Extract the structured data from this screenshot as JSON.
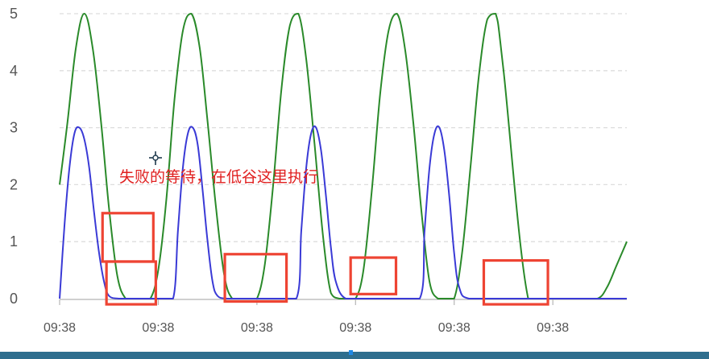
{
  "chart_data": {
    "type": "line",
    "title": "",
    "xlabel": "",
    "ylabel": "",
    "ylim": [
      0,
      5
    ],
    "yticks": [
      0,
      1,
      2,
      3,
      4,
      5
    ],
    "xlim": [
      0,
      11.5
    ],
    "x_tick_labels": [
      "09:38",
      "09:38",
      "09:38",
      "09:38",
      "09:38",
      "09:38"
    ],
    "x_tick_positions": [
      0,
      2,
      4,
      6,
      8,
      10
    ],
    "grid": true,
    "series": [
      {
        "color": "#2a8a2a",
        "x": [
          0,
          0.16,
          0.33,
          0.5,
          0.67,
          0.84,
          1.0,
          1.17,
          1.34,
          1.5,
          1.67,
          1.84,
          2.0,
          2.16,
          2.33,
          2.5,
          2.67,
          2.84,
          3.0,
          3.17,
          3.34,
          3.5,
          3.67,
          3.84,
          4.0,
          4.16,
          4.33,
          4.5,
          4.67,
          4.84,
          5.0,
          5.17,
          5.34,
          5.5,
          5.67,
          5.84,
          6.0,
          6.16,
          6.33,
          6.5,
          6.67,
          6.84,
          7.0,
          7.17,
          7.34,
          7.5,
          7.67,
          7.84,
          8.0,
          8.16,
          8.33,
          8.5,
          8.67,
          8.84,
          9.0,
          9.5,
          10.0,
          10.5,
          10.9,
          11.1,
          11.3,
          11.5
        ],
        "values": [
          2.0,
          3.1,
          4.4,
          5.0,
          4.4,
          3.1,
          1.6,
          0.4,
          0.0,
          0.0,
          0.0,
          0.0,
          0.5,
          1.7,
          3.5,
          4.7,
          5.0,
          4.4,
          3.1,
          1.6,
          0.4,
          0.0,
          0.0,
          0.0,
          0.0,
          0.6,
          2.0,
          3.7,
          4.8,
          5.0,
          4.2,
          2.7,
          1.1,
          0.1,
          0.0,
          0.0,
          0.0,
          0.5,
          1.9,
          3.6,
          4.7,
          5.0,
          4.4,
          3.1,
          1.5,
          0.3,
          0.0,
          0.0,
          0.0,
          0.8,
          2.3,
          3.9,
          4.9,
          5.0,
          4.0,
          0.0,
          0.0,
          0.0,
          0.0,
          0.2,
          0.6,
          1.0
        ]
      },
      {
        "color": "#3a3ad6",
        "x": [
          0,
          0.1,
          0.2,
          0.3,
          0.4,
          0.5,
          0.6,
          0.7,
          0.8,
          0.9,
          1.0,
          1.2,
          1.5,
          2.0,
          2.3,
          2.4,
          2.5,
          2.6,
          2.7,
          2.8,
          2.9,
          3.0,
          3.1,
          3.2,
          3.4,
          3.8,
          4.3,
          4.8,
          4.9,
          5.0,
          5.1,
          5.2,
          5.3,
          5.4,
          5.5,
          5.6,
          5.8,
          6.2,
          6.7,
          7.3,
          7.4,
          7.5,
          7.6,
          7.7,
          7.8,
          7.9,
          8.0,
          8.1,
          8.3,
          9.0,
          10.0,
          11.0,
          11.5
        ],
        "values": [
          0.0,
          1.3,
          2.3,
          2.9,
          3.0,
          2.8,
          2.3,
          1.5,
          0.8,
          0.3,
          0.05,
          0.0,
          0.0,
          0.0,
          0.0,
          1.2,
          2.3,
          2.9,
          3.0,
          2.7,
          1.9,
          1.0,
          0.3,
          0.05,
          0.0,
          0.0,
          0.0,
          0.0,
          1.2,
          2.3,
          2.9,
          3.0,
          2.6,
          1.8,
          0.9,
          0.3,
          0.0,
          0.0,
          0.0,
          0.0,
          1.2,
          2.3,
          2.9,
          3.0,
          2.6,
          1.8,
          0.8,
          0.2,
          0.0,
          0.0,
          0.0,
          0.0,
          0.0
        ]
      }
    ],
    "annotation": {
      "text": "失败的等待，在低谷这里执行",
      "color": "#e02020"
    },
    "highlight_boxes": [
      {
        "x0": 0.87,
        "x1": 1.9,
        "y0": 0.65,
        "y1": 1.5
      },
      {
        "x0": 0.95,
        "x1": 1.95,
        "y0": -0.1,
        "y1": 0.65
      },
      {
        "x0": 3.35,
        "x1": 4.6,
        "y0": -0.05,
        "y1": 0.78
      },
      {
        "x0": 5.9,
        "x1": 6.82,
        "y0": 0.08,
        "y1": 0.72
      },
      {
        "x0": 8.6,
        "x1": 9.9,
        "y0": -0.1,
        "y1": 0.67
      }
    ],
    "box_color": "#ee4433"
  }
}
